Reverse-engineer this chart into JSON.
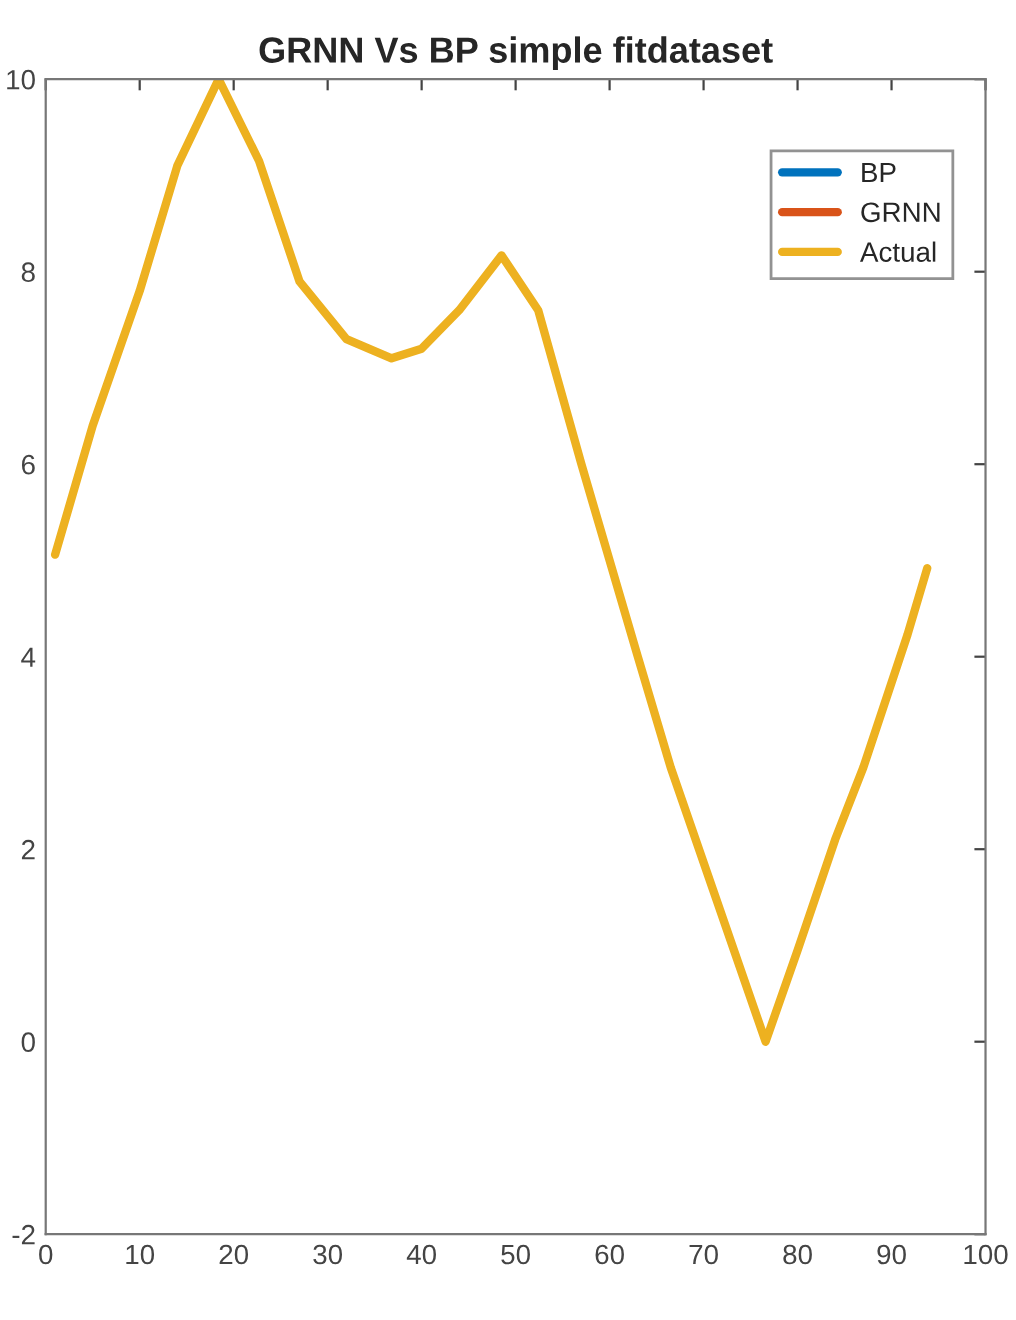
{
  "chart_data": {
    "type": "line",
    "title": "GRNN Vs BP simple fitdataset",
    "x": [
      1,
      5,
      10,
      14,
      18.4,
      22.7,
      27,
      32,
      36.8,
      40,
      44,
      48.5,
      52.4,
      57,
      63,
      66.5,
      71,
      76.6,
      80,
      84,
      87,
      91.7,
      93.8
    ],
    "series": [
      {
        "name": "BP",
        "color": "#0072bd",
        "values": [
          null,
          null,
          null,
          null,
          null,
          null,
          null,
          null,
          null,
          null,
          null,
          null,
          null,
          null,
          null,
          null,
          null,
          null,
          null,
          null,
          null,
          null,
          null
        ]
      },
      {
        "name": "GRNN",
        "color": "#d95319",
        "values": [
          null,
          null,
          null,
          null,
          null,
          null,
          null,
          null,
          null,
          null,
          null,
          null,
          null,
          null,
          null,
          null,
          null,
          null,
          null,
          null,
          null,
          null,
          null
        ]
      },
      {
        "name": "Actual",
        "color": "#edb120",
        "values": [
          5.06,
          6.4,
          7.8,
          9.1,
          10,
          9.15,
          7.9,
          7.3,
          7.1,
          7.2,
          7.6,
          8.17,
          7.6,
          6.0,
          4.0,
          2.85,
          1.58,
          0,
          0.95,
          2.1,
          2.85,
          4.23,
          4.92
        ]
      }
    ],
    "xlim": [
      0,
      100
    ],
    "xticks": [
      0,
      10,
      20,
      30,
      40,
      50,
      60,
      70,
      80,
      90,
      100
    ],
    "ylim": [
      -2,
      10
    ],
    "yticks": [
      -2,
      0,
      2,
      4,
      6,
      8,
      10
    ],
    "grid": false,
    "legend": "top right",
    "line_style": "solid",
    "marker": "none"
  }
}
